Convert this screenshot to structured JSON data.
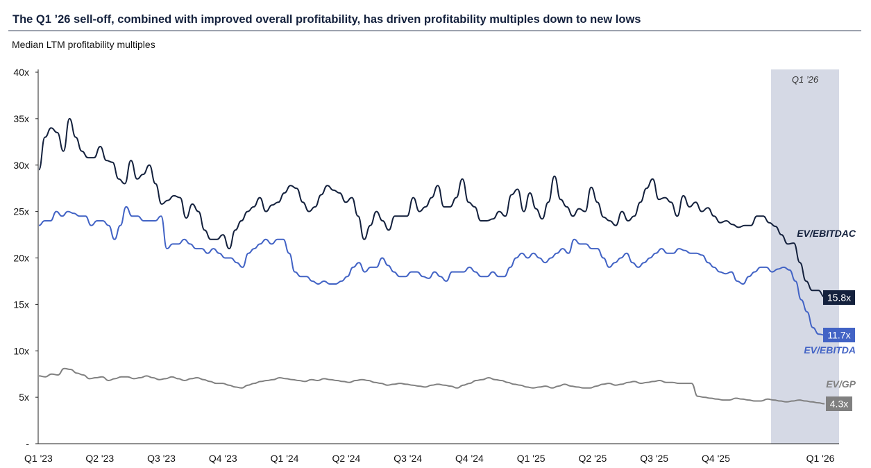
{
  "title": "The Q1 ’26 sell-off, combined with improved overall profitability, has driven profitability multiples down to new lows",
  "subtitle": "Median LTM profitability multiples",
  "colors": {
    "ev_ebitdac": "#14213d",
    "ev_ebitda": "#4263c5",
    "ev_gp": "#808080",
    "shade": "#d5d9e5",
    "axis": "#222222"
  },
  "chart_data": {
    "type": "line",
    "title": "The Q1 ’26 sell-off, combined with improved overall profitability, has driven profitability multiples down to new lows",
    "subtitle": "Median LTM profitability multiples",
    "xlabel": "",
    "ylabel": "",
    "x_ticks": [
      "Q1 '23",
      "Q2 '23",
      "Q3 '23",
      "Q4 '23",
      "Q1 '24",
      "Q2 '24",
      "Q3 '24",
      "Q4 '24",
      "Q1 '25",
      "Q2 '25",
      "Q3 '25",
      "Q4 '25",
      "Q1 '26"
    ],
    "y_ticks": [
      "-",
      "5x",
      "10x",
      "15x",
      "20x",
      "25x",
      "30x",
      "35x",
      "40x"
    ],
    "ylim": [
      0,
      40
    ],
    "grid": false,
    "shaded_region": {
      "label": "Q1 ’26",
      "from": "Q4 '25 (mid)",
      "to": "Q1 '26 (end)"
    },
    "series": [
      {
        "name": "EV/EBITDAC",
        "end_label": "15.8x",
        "values": [
          29.5,
          33,
          34,
          33.5,
          31.5,
          35,
          33,
          31.5,
          30.8,
          30.8,
          32,
          30.5,
          30.3,
          28.5,
          28,
          30.5,
          28.5,
          29,
          30,
          28,
          25.8,
          26.2,
          26.7,
          26.5,
          24.3,
          25.8,
          25,
          23,
          22,
          22,
          22.5,
          21,
          23,
          24,
          25,
          25.5,
          26.5,
          25,
          25.7,
          26,
          27,
          27.8,
          27.5,
          26,
          25,
          25.5,
          26.8,
          27.8,
          27.3,
          27,
          26,
          26.5,
          24.5,
          22,
          23.5,
          25,
          24,
          23,
          24.5,
          24.5,
          24.5,
          26.5,
          25,
          25.5,
          26.5,
          27.8,
          25.5,
          25.5,
          26.5,
          28.5,
          26,
          25.5,
          24,
          24,
          24.2,
          25,
          24.5,
          26.8,
          27.4,
          25,
          27,
          25.3,
          24.2,
          26,
          28.8,
          26.3,
          25.5,
          24.5,
          25.3,
          25,
          27.6,
          26,
          24.4,
          24,
          23.5,
          25,
          24,
          24.5,
          26,
          27.5,
          28.5,
          26.3,
          26.5,
          26,
          24.5,
          26.7,
          25.5,
          26,
          25,
          25.4,
          24.5,
          23.8,
          24,
          23.6,
          23.3,
          23.5,
          23.5,
          24.5,
          24.5,
          23.8,
          23.4,
          22.5,
          21.5,
          21.6,
          19.5,
          17.5,
          16.5,
          16.5,
          15.8
        ]
      },
      {
        "name": "EV/EBITDA",
        "end_label": "11.7x",
        "values": [
          23.5,
          24,
          24,
          25,
          24.5,
          25,
          24.8,
          24.5,
          24.5,
          23.5,
          24,
          24,
          23.5,
          22,
          23.5,
          25.5,
          24.5,
          24.5,
          24,
          24,
          24,
          24.5,
          21,
          21.5,
          21.5,
          22,
          21.5,
          21,
          21,
          20.5,
          21,
          20.5,
          20,
          20,
          19.5,
          19,
          20.5,
          21,
          21.5,
          22,
          21.5,
          22,
          22,
          20.5,
          18.5,
          18,
          18,
          17.5,
          17.2,
          17.5,
          17.2,
          17.2,
          17.5,
          18,
          19,
          19.5,
          18.5,
          19,
          19,
          20,
          19.2,
          18.5,
          18,
          18,
          18.5,
          18.5,
          18,
          17.8,
          18.5,
          18,
          17.5,
          18.5,
          18.5,
          18.5,
          19,
          18.5,
          18,
          18,
          18.5,
          18,
          18,
          19,
          20,
          20.5,
          20,
          20.5,
          20,
          19.5,
          20,
          20.5,
          21,
          20.5,
          22,
          21.5,
          21.5,
          21,
          21,
          20,
          19,
          19.5,
          20,
          20.5,
          19.5,
          19,
          19.5,
          20,
          20.5,
          21,
          20.5,
          20.5,
          21,
          20.8,
          20.5,
          20.5,
          20.3,
          19.5,
          19,
          18.5,
          18.3,
          18.5,
          17.5,
          17.2,
          18,
          18.5,
          19,
          19,
          18.5,
          18.8,
          19,
          18.7,
          17.5,
          15.5,
          14.2,
          12.5,
          11.8,
          11.7
        ]
      },
      {
        "name": "EV/GP",
        "end_label": "4.3x",
        "values": [
          7.3,
          7.2,
          7.5,
          7.4,
          8.1,
          8.0,
          7.6,
          7.4,
          7.0,
          7.1,
          7.2,
          6.8,
          7.0,
          7.2,
          7.2,
          7.0,
          7.1,
          7.3,
          7.1,
          6.9,
          7.0,
          7.2,
          7.0,
          6.8,
          7.0,
          7.1,
          6.9,
          6.7,
          6.5,
          6.5,
          6.3,
          6.1,
          6.0,
          6.3,
          6.5,
          6.7,
          6.8,
          6.9,
          7.1,
          7.0,
          6.9,
          6.8,
          6.7,
          6.9,
          6.8,
          7.0,
          6.9,
          6.8,
          6.7,
          6.6,
          6.8,
          6.9,
          6.8,
          6.6,
          6.5,
          6.3,
          6.4,
          6.5,
          6.4,
          6.3,
          6.2,
          6.1,
          6.3,
          6.4,
          6.3,
          6.2,
          6.0,
          6.3,
          6.5,
          6.8,
          6.9,
          7.1,
          6.9,
          6.8,
          6.6,
          6.4,
          6.3,
          6.1,
          6.0,
          6.1,
          6.2,
          6.0,
          6.2,
          6.4,
          6.2,
          6.1,
          6.0,
          6.0,
          6.2,
          6.4,
          6.5,
          6.3,
          6.4,
          6.6,
          6.7,
          6.5,
          6.6,
          6.7,
          6.8,
          6.6,
          6.6,
          6.5,
          6.5,
          6.5,
          5.1,
          5.0,
          4.9,
          4.8,
          4.7,
          4.7,
          4.9,
          4.8,
          4.7,
          4.6,
          4.6,
          4.8,
          4.7,
          4.6,
          4.5,
          4.6,
          4.7,
          4.6,
          4.5,
          4.4,
          4.3
        ]
      }
    ]
  }
}
